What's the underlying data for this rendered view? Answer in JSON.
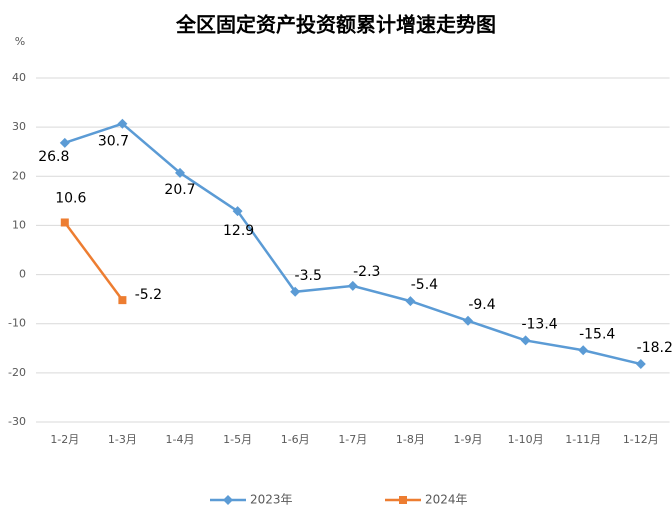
{
  "chart_data": {
    "type": "line",
    "title": "全区固定资产投资额累计增速走势图",
    "y_unit": "%",
    "categories": [
      "1-2月",
      "1-3月",
      "1-4月",
      "1-5月",
      "1-6月",
      "1-7月",
      "1-8月",
      "1-9月",
      "1-10月",
      "1-11月",
      "1-12月"
    ],
    "series": [
      {
        "name": "2023年",
        "color": "#5b9bd5",
        "marker": "diamond",
        "values": [
          26.8,
          30.7,
          20.7,
          12.9,
          -3.5,
          -2.3,
          -5.4,
          -9.4,
          -13.4,
          -15.4,
          -18.2
        ]
      },
      {
        "name": "2024年",
        "color": "#ed7d31",
        "marker": "square",
        "values": [
          10.6,
          -5.2,
          null,
          null,
          null,
          null,
          null,
          null,
          null,
          null,
          null
        ]
      }
    ],
    "ylim": [
      -30,
      40
    ],
    "yticks": [
      -30,
      -20,
      -10,
      0,
      10,
      20,
      30,
      40
    ],
    "grid": true,
    "legend": "bottom"
  }
}
